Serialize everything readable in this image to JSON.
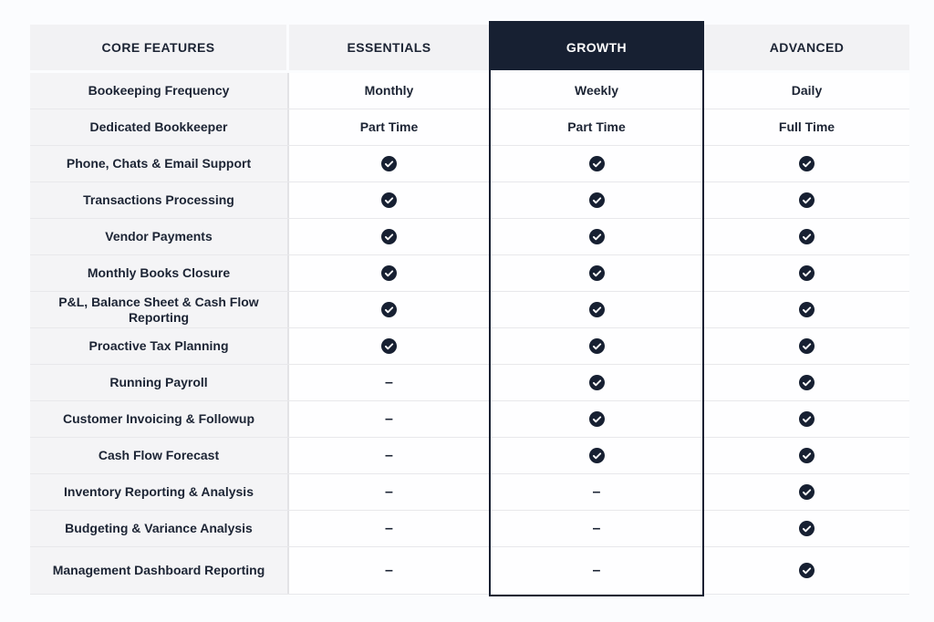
{
  "colors": {
    "page_bg": "#fbfcfe",
    "accent_dark": "#172032",
    "header_bg": "#f2f2f4",
    "feature_col_bg": "#f4f4f6",
    "cell_bg": "#fefeff",
    "text": "#1c2434",
    "divider": "#e8e8eb"
  },
  "glyphs": {
    "dash": "–"
  },
  "icons": {
    "check": "check-circle-icon",
    "dash": "dash-icon"
  },
  "table": {
    "header": {
      "features": "CORE FEATURES",
      "plans": [
        "ESSENTIALS",
        "GROWTH",
        "ADVANCED"
      ],
      "highlighted_plan": "GROWTH"
    },
    "rows": [
      {
        "label": "Bookeeping Frequency",
        "values": [
          "Monthly",
          "Weekly",
          "Daily"
        ]
      },
      {
        "label": "Dedicated Bookkeeper",
        "values": [
          "Part Time",
          "Part Time",
          "Full Time"
        ]
      },
      {
        "label": "Phone, Chats & Email Support",
        "values": [
          "check",
          "check",
          "check"
        ]
      },
      {
        "label": "Transactions Processing",
        "values": [
          "check",
          "check",
          "check"
        ]
      },
      {
        "label": "Vendor Payments",
        "values": [
          "check",
          "check",
          "check"
        ]
      },
      {
        "label": "Monthly Books Closure",
        "values": [
          "check",
          "check",
          "check"
        ]
      },
      {
        "label": "P&L, Balance Sheet & Cash Flow Reporting",
        "values": [
          "check",
          "check",
          "check"
        ]
      },
      {
        "label": "Proactive Tax Planning",
        "values": [
          "check",
          "check",
          "check"
        ]
      },
      {
        "label": "Running Payroll",
        "values": [
          "dash",
          "check",
          "check"
        ]
      },
      {
        "label": "Customer Invoicing & Followup",
        "values": [
          "dash",
          "check",
          "check"
        ]
      },
      {
        "label": "Cash Flow Forecast",
        "values": [
          "dash",
          "check",
          "check"
        ]
      },
      {
        "label": "Inventory Reporting & Analysis",
        "values": [
          "dash",
          "dash",
          "check"
        ]
      },
      {
        "label": "Budgeting & Variance Analysis",
        "values": [
          "dash",
          "dash",
          "check"
        ]
      },
      {
        "label": "Management Dashboard Reporting",
        "values": [
          "dash",
          "dash",
          "check"
        ]
      }
    ]
  }
}
